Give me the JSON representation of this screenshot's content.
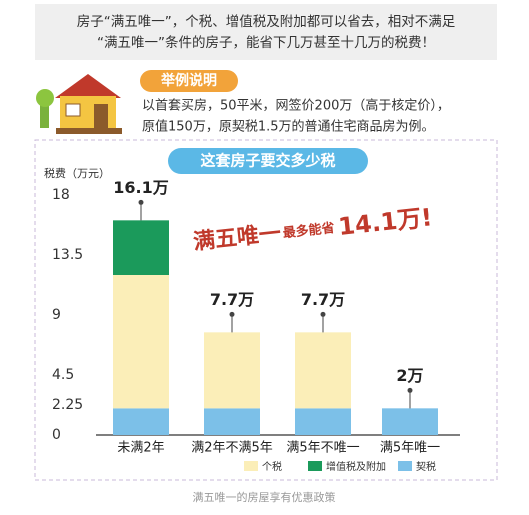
{
  "header": {
    "lines": [
      "房子“满五唯一”，个税、增值税及附加都可以省去，相对不满足",
      "“满五唯一”条件的房子，能省下几万甚至十几万的税费！"
    ]
  },
  "example": {
    "tag": "举例说明",
    "lines": [
      "以首套买房，50平米，网签价200万（高于核定价），",
      "原值150万，原契税1.5万的普通住宅商品房为例。"
    ]
  },
  "chart_data": {
    "type": "stacked_bar",
    "title": "这套房子要交多少税",
    "y_label": "税费（万元）",
    "annotation": [
      "满五唯一",
      "最多能省",
      "14.1万!"
    ],
    "categories": [
      "未满2年",
      "满2年不满5年",
      "满5年不唯一",
      "满5年唯一"
    ],
    "series": [
      {
        "name": "个税",
        "color": "#fbeeb8",
        "values": [
          10,
          5.7,
          5.7,
          0
        ]
      },
      {
        "name": "增值税及附加",
        "color": "#1b9a5b",
        "values": [
          4.1,
          0,
          0,
          0
        ]
      },
      {
        "name": "契税",
        "color": "#7cc0e8",
        "values": [
          2,
          2,
          2,
          2
        ]
      }
    ],
    "totals": {
      "values": [
        16.1,
        7.7,
        7.7,
        2
      ],
      "value_labels": [
        "16.1万",
        "7.7万",
        "7.7万",
        "2万"
      ]
    },
    "ylim": [
      0,
      18
    ],
    "yticks": [
      0,
      2.25,
      4.5,
      9,
      13.5,
      18
    ]
  },
  "caption": "满五唯一的房屋享有优惠政策"
}
